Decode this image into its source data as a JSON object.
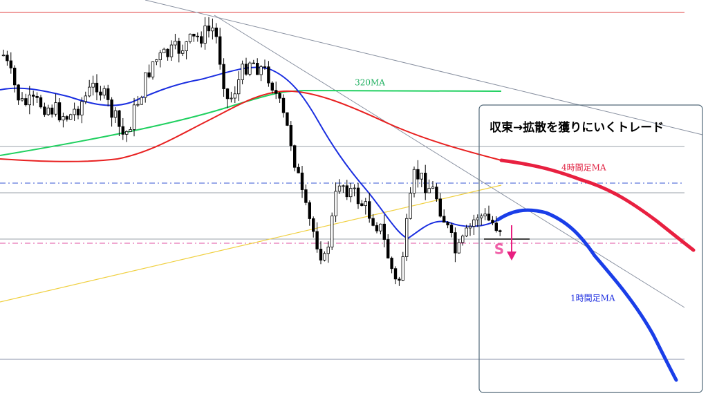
{
  "annotations": {
    "ma320": "320MA",
    "strategy": "収束→拡散を獲りにいくトレード",
    "ma4h": "4時間足MA",
    "ma1h": "1時間足MA",
    "signal": "S"
  }
}
